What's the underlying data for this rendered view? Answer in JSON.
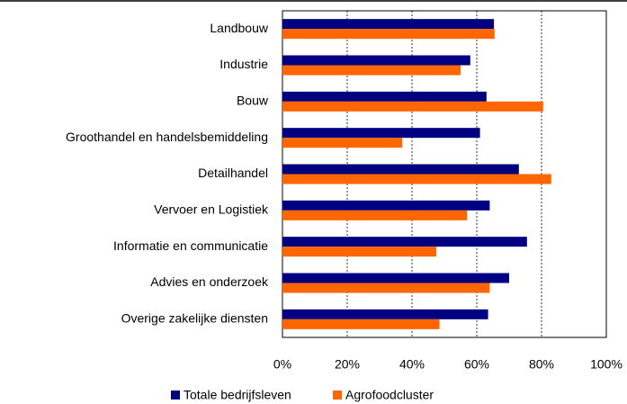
{
  "chart_data": {
    "type": "hbar",
    "categories": [
      "Landbouw",
      "Industrie",
      "Bouw",
      "Groothandel en handelsbemiddeling",
      "Detailhandel",
      "Vervoer en Logistiek",
      "Informatie en communicatie",
      "Advies en onderzoek",
      "Overige zakelijke diensten"
    ],
    "series": [
      {
        "name": "Totale bedrijfsleven",
        "color": "#000080",
        "values": [
          65.3,
          58,
          63,
          61,
          73,
          64,
          75.5,
          70,
          63.5
        ]
      },
      {
        "name": "Agrofoodcluster",
        "color": "#ff6600",
        "values": [
          65.5,
          55,
          80.5,
          37,
          83,
          57,
          47.5,
          64,
          48.5
        ]
      }
    ],
    "xlim": [
      0,
      100
    ],
    "xticks": [
      {
        "value": 0,
        "label": "0%"
      },
      {
        "value": 20,
        "label": "20%"
      },
      {
        "value": 40,
        "label": "40%"
      },
      {
        "value": 60,
        "label": "60%"
      },
      {
        "value": 80,
        "label": "80%"
      },
      {
        "value": 100,
        "label": "100%"
      }
    ],
    "grid": true,
    "legend": "bottom"
  }
}
